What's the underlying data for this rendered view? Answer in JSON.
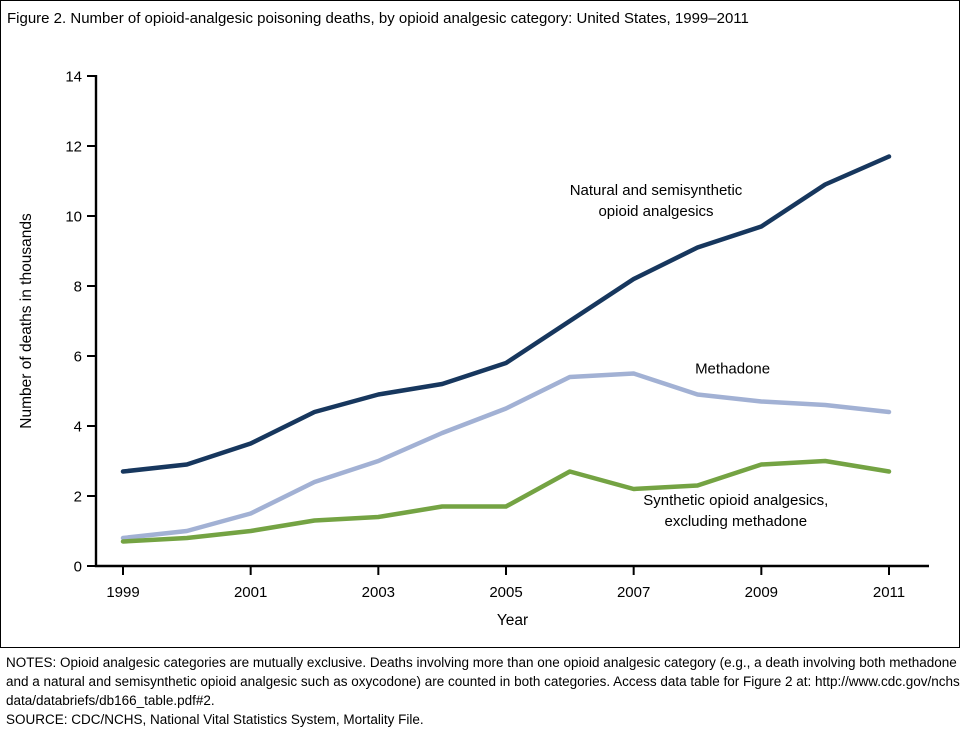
{
  "figure": {
    "title": "Figure 2. Number of opioid-analgesic poisoning deaths, by opioid analgesic category: United States, 1999–2011"
  },
  "notes": {
    "lines": [
      "NOTES: Opioid analgesic categories are mutually exclusive. Deaths involving more than one opioid analgesic category (e.g., a death involving both methadone",
      "and a natural and semisynthetic opioid analgesic such as oxycodone) are counted in both categories. Access data table for Figure 2 at: http://www.cdc.gov/nchs/",
      "data/databriefs/db166_table.pdf#2."
    ],
    "source": "SOURCE: CDC/NCHS, National Vital Statistics System, Mortality File."
  },
  "chart_data": {
    "type": "line",
    "title": "Figure 2. Number of opioid-analgesic poisoning deaths, by opioid analgesic category: United States, 1999–2011",
    "xlabel": "Year",
    "ylabel": "Number of deaths in thousands",
    "x": [
      1999,
      2000,
      2001,
      2002,
      2003,
      2004,
      2005,
      2006,
      2007,
      2008,
      2009,
      2010,
      2011
    ],
    "series": [
      {
        "name": "Natural and semisynthetic opioid analgesics",
        "color": "#17375E",
        "values": [
          2.7,
          2.9,
          3.5,
          4.4,
          4.9,
          5.2,
          5.8,
          7.0,
          8.2,
          9.1,
          9.7,
          10.9,
          11.7
        ]
      },
      {
        "name": "Methadone",
        "color": "#A2B1D4",
        "values": [
          0.8,
          1.0,
          1.5,
          2.4,
          3.0,
          3.8,
          4.5,
          5.4,
          5.5,
          4.9,
          4.7,
          4.6,
          4.4
        ]
      },
      {
        "name": "Synthetic opioid analgesics, excluding methadone",
        "color": "#74A343",
        "values": [
          0.7,
          0.8,
          1.0,
          1.3,
          1.4,
          1.7,
          1.7,
          2.7,
          2.2,
          2.3,
          2.9,
          3.0,
          2.7
        ]
      }
    ],
    "ylim": [
      0,
      14
    ],
    "yticks": [
      0,
      2,
      4,
      6,
      8,
      10,
      12,
      14
    ],
    "xticks": [
      1999,
      2001,
      2003,
      2005,
      2007,
      2009,
      2011
    ],
    "grid": false,
    "legend": "inline-annotations",
    "annotations": [
      {
        "lines": [
          "Natural and semisynthetic",
          "opioid analgesics"
        ],
        "x": 2007.35,
        "y": 10.6
      },
      {
        "lines": [
          "Methadone"
        ],
        "x": 2008.55,
        "y": 5.5
      },
      {
        "lines": [
          "Synthetic opioid analgesics,",
          "excluding methadone"
        ],
        "x": 2008.6,
        "y": 1.75
      }
    ]
  }
}
